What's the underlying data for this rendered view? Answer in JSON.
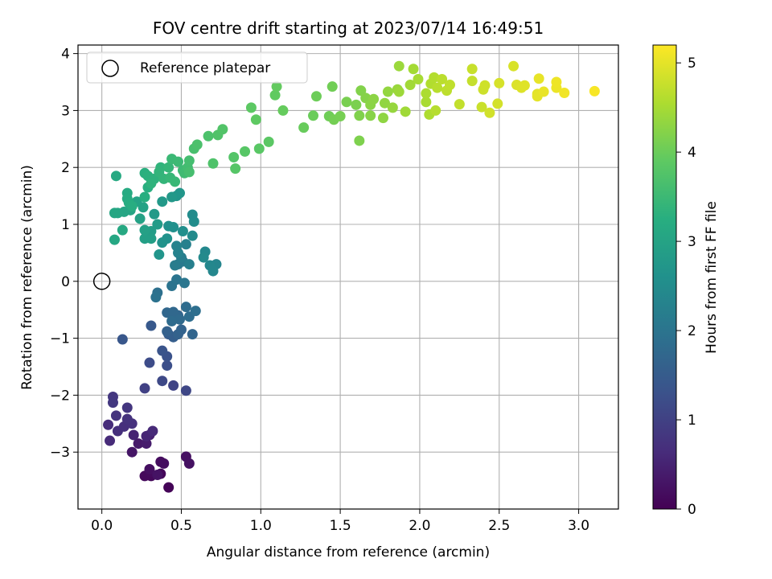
{
  "chart_data": {
    "type": "scatter",
    "title": "FOV centre drift starting at 2023/07/14 16:49:51",
    "xlabel": "Angular distance from reference (arcmin)",
    "ylabel": "Rotation from reference (arcmin)",
    "xlim": [
      -0.15,
      3.25
    ],
    "ylim": [
      -4.0,
      4.15
    ],
    "x_ticks": [
      "0.0",
      "0.5",
      "1.0",
      "1.5",
      "2.0",
      "2.5",
      "3.0"
    ],
    "x_tick_values": [
      0,
      0.5,
      1.0,
      1.5,
      2.0,
      2.5,
      3.0
    ],
    "y_ticks": [
      "−3",
      "−2",
      "−1",
      "0",
      "1",
      "2",
      "3",
      "4"
    ],
    "y_tick_values": [
      -3,
      -2,
      -1,
      0,
      1,
      2,
      3,
      4
    ],
    "grid": true,
    "legend_position": "top-left",
    "legend": [
      {
        "label": "Reference platepar",
        "marker": "hollow-circle",
        "x": 0.0,
        "y": 0.0
      }
    ],
    "colorbar": {
      "label": "Hours from first FF file",
      "range": [
        0,
        5.2
      ],
      "tick_values": [
        0,
        1,
        2,
        3,
        4,
        5
      ],
      "ticks": [
        "0",
        "1",
        "2",
        "3",
        "4",
        "5"
      ],
      "colormap": "viridis"
    },
    "points": [
      [
        0.42,
        -3.62,
        0.05
      ],
      [
        0.37,
        -3.38,
        0.08
      ],
      [
        0.31,
        -3.42,
        0.1
      ],
      [
        0.27,
        -3.42,
        0.12
      ],
      [
        0.3,
        -3.35,
        0.14
      ],
      [
        0.37,
        -3.17,
        0.16
      ],
      [
        0.39,
        -3.2,
        0.18
      ],
      [
        0.3,
        -3.3,
        0.2
      ],
      [
        0.53,
        -3.08,
        0.22
      ],
      [
        0.55,
        -3.2,
        0.24
      ],
      [
        0.35,
        -3.4,
        0.26
      ],
      [
        0.19,
        -3.0,
        0.3
      ],
      [
        0.23,
        -2.85,
        0.35
      ],
      [
        0.28,
        -2.85,
        0.4
      ],
      [
        0.3,
        -2.7,
        0.45
      ],
      [
        0.2,
        -2.7,
        0.5
      ],
      [
        0.28,
        -2.72,
        0.55
      ],
      [
        0.32,
        -2.63,
        0.6
      ],
      [
        0.05,
        -2.8,
        0.62
      ],
      [
        0.04,
        -2.52,
        0.65
      ],
      [
        0.1,
        -2.63,
        0.68
      ],
      [
        0.14,
        -2.55,
        0.7
      ],
      [
        0.19,
        -2.5,
        0.72
      ],
      [
        0.16,
        -2.42,
        0.75
      ],
      [
        0.09,
        -2.36,
        0.77
      ],
      [
        0.16,
        -2.22,
        0.8
      ],
      [
        0.07,
        -2.03,
        0.82
      ],
      [
        0.07,
        -2.13,
        0.85
      ],
      [
        0.27,
        -1.88,
        1.0
      ],
      [
        0.45,
        -1.83,
        1.05
      ],
      [
        0.53,
        -1.92,
        1.1
      ],
      [
        0.38,
        -1.75,
        1.15
      ],
      [
        0.3,
        -1.43,
        1.2
      ],
      [
        0.41,
        -1.48,
        1.25
      ],
      [
        0.41,
        -1.32,
        1.3
      ],
      [
        0.38,
        -1.22,
        1.35
      ],
      [
        0.13,
        -1.02,
        1.4
      ],
      [
        0.31,
        -0.78,
        1.45
      ],
      [
        0.42,
        -0.93,
        1.5
      ],
      [
        0.45,
        -0.98,
        1.55
      ],
      [
        0.41,
        -0.88,
        1.6
      ],
      [
        0.48,
        -0.93,
        1.62
      ],
      [
        0.5,
        -0.85,
        1.65
      ],
      [
        0.57,
        -0.93,
        1.68
      ],
      [
        0.48,
        -0.6,
        1.7
      ],
      [
        0.41,
        -0.55,
        1.72
      ],
      [
        0.45,
        -0.54,
        1.75
      ],
      [
        0.49,
        -0.67,
        1.78
      ],
      [
        0.44,
        -0.7,
        1.8
      ],
      [
        0.53,
        -0.45,
        1.82
      ],
      [
        0.55,
        -0.62,
        1.85
      ],
      [
        0.59,
        -0.52,
        1.88
      ],
      [
        0.35,
        -0.2,
        1.9
      ],
      [
        0.34,
        -0.28,
        1.95
      ],
      [
        0.44,
        -0.08,
        1.98
      ],
      [
        0.47,
        0.03,
        2.0
      ],
      [
        0.52,
        -0.03,
        2.03
      ],
      [
        0.48,
        0.3,
        2.06
      ],
      [
        0.51,
        0.35,
        2.1
      ],
      [
        0.46,
        0.28,
        2.15
      ],
      [
        0.5,
        0.42,
        2.18
      ],
      [
        0.55,
        0.3,
        2.22
      ],
      [
        0.53,
        0.65,
        2.25
      ],
      [
        0.48,
        0.5,
        2.28
      ],
      [
        0.47,
        0.62,
        2.3
      ],
      [
        0.72,
        0.3,
        2.35
      ],
      [
        0.7,
        0.18,
        2.38
      ],
      [
        0.68,
        0.28,
        2.4
      ],
      [
        0.65,
        0.52,
        2.42
      ],
      [
        0.64,
        0.42,
        2.45
      ],
      [
        0.57,
        0.8,
        2.48
      ],
      [
        0.57,
        1.17,
        2.5
      ],
      [
        0.58,
        1.05,
        2.52
      ],
      [
        0.51,
        0.88,
        2.55
      ],
      [
        0.45,
        0.95,
        2.58
      ],
      [
        0.42,
        0.97,
        2.6
      ],
      [
        0.41,
        0.75,
        2.62
      ],
      [
        0.38,
        0.68,
        2.65
      ],
      [
        0.36,
        0.47,
        2.68
      ],
      [
        0.47,
        1.5,
        2.7
      ],
      [
        0.49,
        1.55,
        2.72
      ],
      [
        0.44,
        1.48,
        2.75
      ],
      [
        0.38,
        1.4,
        2.78
      ],
      [
        0.33,
        1.18,
        2.8
      ],
      [
        0.35,
        1.0,
        2.82
      ],
      [
        0.31,
        0.88,
        2.85
      ],
      [
        0.29,
        0.77,
        2.88
      ],
      [
        0.31,
        0.75,
        2.9
      ],
      [
        0.27,
        0.75,
        2.92
      ],
      [
        0.27,
        0.9,
        2.94
      ],
      [
        0.24,
        1.1,
        2.96
      ],
      [
        0.26,
        1.3,
        2.98
      ],
      [
        0.22,
        1.4,
        3.0
      ],
      [
        0.18,
        1.25,
        3.02
      ],
      [
        0.14,
        1.22,
        3.04
      ],
      [
        0.1,
        1.2,
        3.06
      ],
      [
        0.08,
        1.2,
        3.08
      ],
      [
        0.08,
        0.73,
        3.1
      ],
      [
        0.13,
        0.9,
        3.12
      ],
      [
        0.09,
        1.85,
        3.14
      ],
      [
        0.16,
        1.55,
        3.16
      ],
      [
        0.16,
        1.45,
        3.18
      ],
      [
        0.17,
        1.38,
        3.2
      ],
      [
        0.19,
        1.32,
        3.22
      ],
      [
        0.27,
        1.48,
        3.24
      ],
      [
        0.29,
        1.65,
        3.26
      ],
      [
        0.27,
        1.9,
        3.28
      ],
      [
        0.29,
        1.85,
        3.3
      ],
      [
        0.33,
        1.8,
        3.32
      ],
      [
        0.31,
        1.72,
        3.34
      ],
      [
        0.37,
        2.0,
        3.36
      ],
      [
        0.36,
        1.92,
        3.38
      ],
      [
        0.39,
        1.8,
        3.4
      ],
      [
        0.42,
        2.0,
        3.42
      ],
      [
        0.43,
        1.82,
        3.44
      ],
      [
        0.46,
        1.75,
        3.46
      ],
      [
        0.44,
        2.15,
        3.48
      ],
      [
        0.48,
        2.1,
        3.5
      ],
      [
        0.51,
        1.95,
        3.52
      ],
      [
        0.52,
        1.9,
        3.55
      ],
      [
        0.54,
        2.0,
        3.58
      ],
      [
        0.55,
        2.12,
        3.6
      ],
      [
        0.55,
        1.92,
        3.62
      ],
      [
        0.58,
        2.33,
        3.65
      ],
      [
        0.6,
        2.4,
        3.68
      ],
      [
        0.67,
        2.55,
        3.7
      ],
      [
        0.7,
        2.07,
        3.72
      ],
      [
        0.73,
        2.57,
        3.74
      ],
      [
        0.76,
        2.67,
        3.76
      ],
      [
        0.83,
        2.18,
        3.78
      ],
      [
        0.84,
        1.98,
        3.8
      ],
      [
        0.9,
        2.28,
        3.82
      ],
      [
        0.99,
        2.33,
        3.84
      ],
      [
        1.05,
        2.45,
        3.86
      ],
      [
        0.94,
        3.05,
        3.88
      ],
      [
        0.97,
        2.84,
        3.9
      ],
      [
        1.09,
        3.27,
        3.92
      ],
      [
        1.1,
        3.42,
        3.94
      ],
      [
        1.14,
        3.0,
        3.96
      ],
      [
        1.27,
        2.7,
        3.98
      ],
      [
        1.33,
        2.91,
        4.0
      ],
      [
        1.35,
        3.25,
        4.02
      ],
      [
        1.43,
        2.9,
        4.04
      ],
      [
        1.45,
        3.42,
        4.06
      ],
      [
        1.46,
        2.84,
        4.08
      ],
      [
        1.5,
        2.9,
        4.1
      ],
      [
        1.54,
        3.15,
        4.12
      ],
      [
        1.6,
        3.1,
        4.14
      ],
      [
        1.62,
        2.47,
        4.16
      ],
      [
        1.62,
        2.91,
        4.18
      ],
      [
        1.63,
        3.35,
        4.2
      ],
      [
        1.66,
        3.22,
        4.22
      ],
      [
        1.69,
        2.91,
        4.24
      ],
      [
        1.69,
        3.1,
        4.26
      ],
      [
        1.71,
        3.2,
        4.28
      ],
      [
        1.77,
        2.87,
        4.3
      ],
      [
        1.78,
        3.13,
        4.32
      ],
      [
        1.8,
        3.33,
        4.34
      ],
      [
        1.83,
        3.05,
        4.36
      ],
      [
        1.86,
        3.37,
        4.38
      ],
      [
        1.87,
        3.78,
        4.4
      ],
      [
        1.87,
        3.33,
        4.42
      ],
      [
        1.91,
        2.98,
        4.44
      ],
      [
        1.94,
        3.45,
        4.46
      ],
      [
        1.96,
        3.73,
        4.48
      ],
      [
        1.99,
        3.55,
        4.5
      ],
      [
        2.04,
        3.15,
        4.52
      ],
      [
        2.04,
        3.3,
        4.54
      ],
      [
        2.06,
        2.93,
        4.56
      ],
      [
        2.07,
        3.47,
        4.58
      ],
      [
        2.09,
        3.58,
        4.6
      ],
      [
        2.1,
        3.0,
        4.62
      ],
      [
        2.11,
        3.4,
        4.64
      ],
      [
        2.14,
        3.55,
        4.66
      ],
      [
        2.17,
        3.35,
        4.68
      ],
      [
        2.19,
        3.45,
        4.7
      ],
      [
        2.25,
        3.11,
        4.72
      ],
      [
        2.33,
        3.52,
        4.74
      ],
      [
        2.33,
        3.73,
        4.76
      ],
      [
        2.39,
        3.06,
        4.78
      ],
      [
        2.4,
        3.37,
        4.8
      ],
      [
        2.41,
        3.44,
        4.82
      ],
      [
        2.44,
        2.96,
        4.84
      ],
      [
        2.49,
        3.12,
        4.86
      ],
      [
        2.5,
        3.48,
        4.88
      ],
      [
        2.59,
        3.78,
        4.9
      ],
      [
        2.61,
        3.45,
        4.92
      ],
      [
        2.64,
        3.4,
        4.94
      ],
      [
        2.66,
        3.44,
        4.96
      ],
      [
        2.74,
        3.29,
        4.98
      ],
      [
        2.74,
        3.25,
        5.0
      ],
      [
        2.75,
        3.56,
        5.02
      ],
      [
        2.78,
        3.33,
        5.04
      ],
      [
        2.86,
        3.4,
        5.06
      ],
      [
        2.86,
        3.5,
        5.08
      ],
      [
        2.91,
        3.31,
        5.1
      ],
      [
        3.1,
        3.34,
        5.15
      ]
    ]
  }
}
